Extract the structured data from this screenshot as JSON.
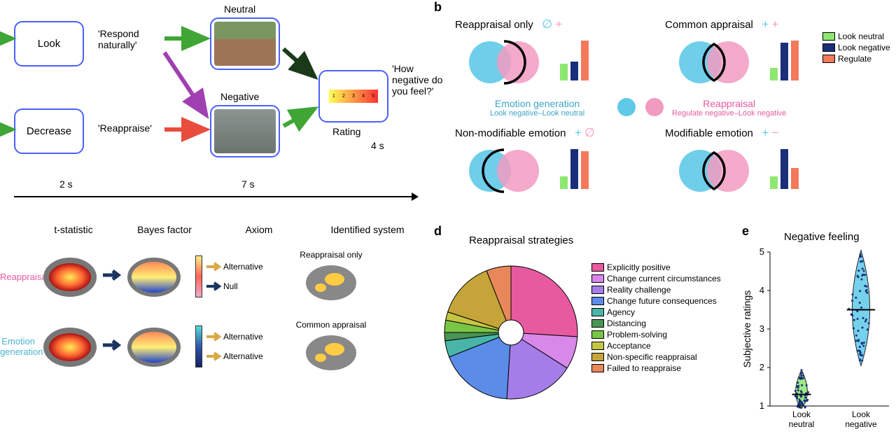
{
  "panelA": {
    "look": "Look",
    "decrease": "Decrease",
    "respond": "'Respond naturally'",
    "reappraise": "'Reappraise'",
    "neutral": "Neutral",
    "negative": "Negative",
    "question": "'How negative do you feel?'",
    "rating": "Rating",
    "t1": "2 s",
    "t2": "7 s",
    "t3": "4 s",
    "arrow_green": "#3fa535",
    "arrow_red": "#e84c3d",
    "arrow_purple": "#a040b0",
    "arrow_dark": "#1a3a1a",
    "box_border": "#4a5fff"
  },
  "panelB": {
    "label": "b",
    "titles": {
      "reappraisal_only": "Reappraisal only",
      "common_appraisal": "Common appraisal",
      "non_modifiable": "Non-modifiable emotion",
      "modifiable": "Modifiable emotion"
    },
    "symbols": {
      "null": "∅",
      "plus": "+",
      "minus": "−"
    },
    "center": {
      "emotion_gen": "Emotion generation",
      "emotion_gen_sub": "Look negative–Look neutral",
      "reappraisal": "Reappraisal",
      "reappraisal_sub": "Regulate negative–Look negative"
    },
    "legend": [
      "Look neutral",
      "Look negative",
      "Regulate"
    ],
    "colors": {
      "cyan": "#5fc9e8",
      "pink": "#f29bc1",
      "green": "#8de86f",
      "navy": "#1a2e7a",
      "salmon": "#f4795a"
    },
    "bars": {
      "reappraisal_only": [
        0.4,
        0.45,
        0.95
      ],
      "common_appraisal": [
        0.3,
        0.9,
        0.95
      ],
      "non_modifiable": [
        0.3,
        0.95,
        0.9
      ],
      "modifiable": [
        0.3,
        0.95,
        0.5
      ]
    }
  },
  "panelC": {
    "col_headers": [
      "t-statistic",
      "Bayes factor",
      "Axiom",
      "Identified system"
    ],
    "row_labels": [
      "Reappraisal",
      "Emotion generation"
    ],
    "row_colors": [
      "#e85aa0",
      "#4ab5d0"
    ],
    "alternative": "Alternative",
    "null_text": "Null",
    "systems": [
      "Reappraisal only",
      "Common appraisal"
    ]
  },
  "panelD": {
    "label": "d",
    "title": "Reappraisal strategies",
    "items": [
      {
        "label": "Explicitly positive",
        "color": "#e85aa0",
        "value": 26
      },
      {
        "label": "Change current circumstances",
        "color": "#d888e8",
        "value": 8
      },
      {
        "label": "Reality challenge",
        "color": "#a57de8",
        "value": 17
      },
      {
        "label": "Change future consequences",
        "color": "#5a8ce8",
        "value": 18
      },
      {
        "label": "Agency",
        "color": "#48b5a8",
        "value": 4
      },
      {
        "label": "Distancing",
        "color": "#4a9555",
        "value": 2
      },
      {
        "label": "Problem-solving",
        "color": "#7ac546",
        "value": 3
      },
      {
        "label": "Acceptance",
        "color": "#c5c545",
        "value": 2
      },
      {
        "label": "Non-specific reappraisal",
        "color": "#c5a53a",
        "value": 14
      },
      {
        "label": "Failed to reappraise",
        "color": "#e8885a",
        "value": 6
      }
    ]
  },
  "panelE": {
    "label": "e",
    "title": "Negative feeling",
    "ylabel": "Subjective ratings",
    "yticks": [
      1,
      2,
      3,
      4,
      5
    ],
    "xlabels": [
      "Look neutral",
      "Look negative"
    ],
    "colors": [
      "#8de86f",
      "#5fc9e8"
    ],
    "means": [
      1.3,
      3.5
    ],
    "widths": [
      0.6,
      0.9
    ]
  }
}
